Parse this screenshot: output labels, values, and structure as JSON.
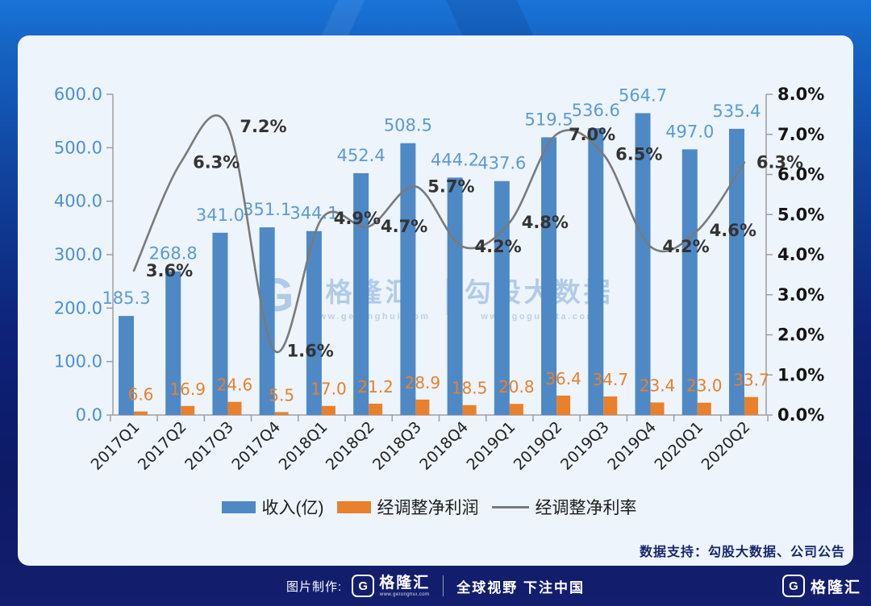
{
  "chart_data": {
    "type": "bar",
    "subtype": "combo-bar-line-dual-axis",
    "categories": [
      "2017Q1",
      "2017Q2",
      "2017Q3",
      "2017Q4",
      "2018Q1",
      "2018Q2",
      "2018Q3",
      "2018Q4",
      "2019Q1",
      "2019Q2",
      "2019Q3",
      "2019Q4",
      "2020Q1",
      "2020Q2"
    ],
    "series": [
      {
        "name": "收入(亿)",
        "type": "bar",
        "axis": "left",
        "values": [
          185.3,
          268.8,
          341.0,
          351.1,
          344.1,
          452.4,
          508.5,
          444.2,
          437.6,
          519.5,
          536.6,
          564.7,
          497.0,
          535.4
        ]
      },
      {
        "name": "经调整净利润",
        "type": "bar",
        "axis": "left",
        "values": [
          6.6,
          16.9,
          24.6,
          5.5,
          17.0,
          21.2,
          28.9,
          18.5,
          20.8,
          36.4,
          34.7,
          23.4,
          23.0,
          33.7
        ]
      },
      {
        "name": "经调整净利率",
        "type": "line",
        "axis": "right",
        "unit": "%",
        "values": [
          3.6,
          6.3,
          7.2,
          1.6,
          4.9,
          4.7,
          5.7,
          4.2,
          4.8,
          7.0,
          6.5,
          4.2,
          4.6,
          6.3
        ]
      }
    ],
    "left_axis": {
      "min": 0,
      "max": 600,
      "step": 100,
      "labels": [
        "0.0",
        "100.0",
        "200.0",
        "300.0",
        "400.0",
        "500.0",
        "600.0"
      ]
    },
    "right_axis": {
      "min": 0,
      "max": 8,
      "step": 1,
      "labels": [
        "0.0%",
        "1.0%",
        "2.0%",
        "3.0%",
        "4.0%",
        "5.0%",
        "6.0%",
        "7.0%",
        "8.0%"
      ]
    },
    "grid": "off",
    "legend_position": "bottom",
    "colors": {
      "revenue_bar": "#4e89c6",
      "revenue_label": "#5b9bd5",
      "profit_bar": "#e8802c",
      "profit_label": "#e8802c",
      "margin_line": "#7a7a7a",
      "margin_label": "#333333",
      "left_axis_text": "#4a90d9",
      "right_axis_text": "#141414",
      "x_axis_text": "#222222",
      "axis_line": "#9e9ea4"
    }
  },
  "watermark": {
    "logo_letter": "G",
    "brand": "格隆汇",
    "brand_url": "www.gelonghui.com",
    "product": "勾股大数据",
    "product_url": "www.gogudata.com"
  },
  "support_note": "数据支持：勾股大数据、公司公告",
  "footer": {
    "made_by_label": "图片制作:",
    "logo_letter": "G",
    "brand": "格隆汇",
    "brand_url": "www.gelonghui.com",
    "slogan": "全球视野 下注中国",
    "right_logo_letter": "G",
    "right_brand": "格隆汇"
  }
}
